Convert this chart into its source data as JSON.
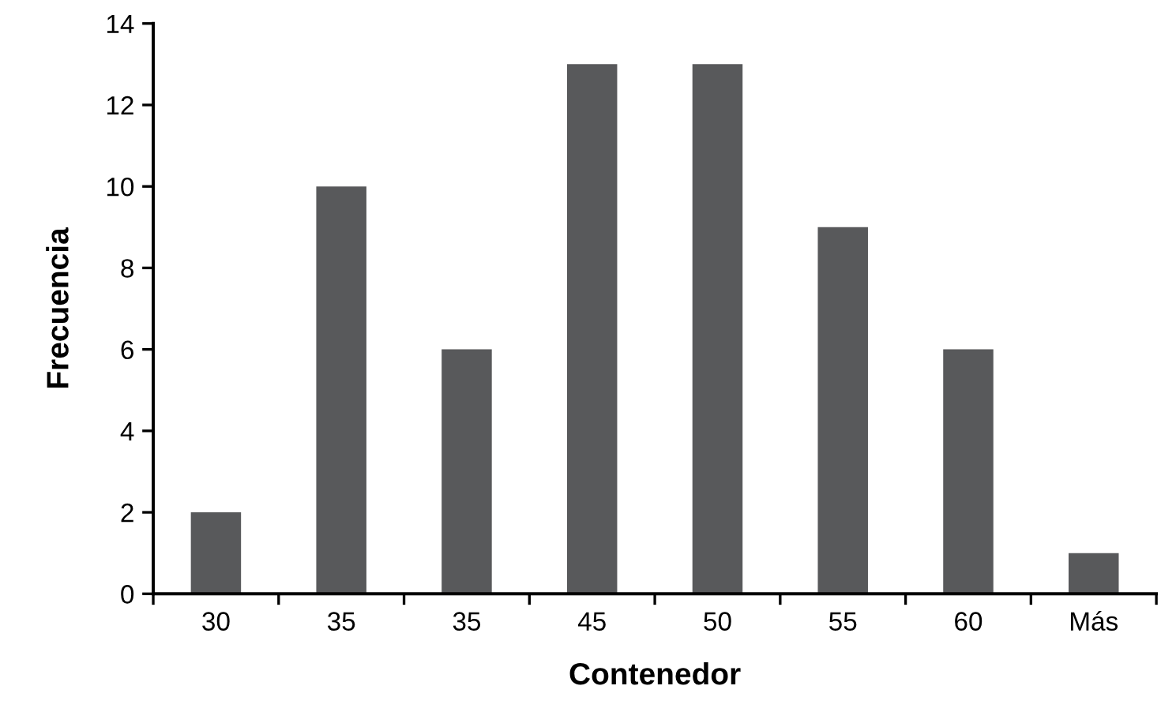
{
  "chart_data": {
    "type": "bar",
    "xlabel": "Contenedor",
    "ylabel": "Frecuencia",
    "categories": [
      "30",
      "35",
      "35",
      "45",
      "50",
      "55",
      "60",
      "Más"
    ],
    "values": [
      2,
      10,
      6,
      13,
      13,
      9,
      6,
      1
    ],
    "color": "#58595b",
    "ylim": [
      0,
      14
    ],
    "yticks": [
      0,
      2,
      4,
      6,
      8,
      10,
      12,
      14
    ],
    "grid": false,
    "legend": false
  }
}
